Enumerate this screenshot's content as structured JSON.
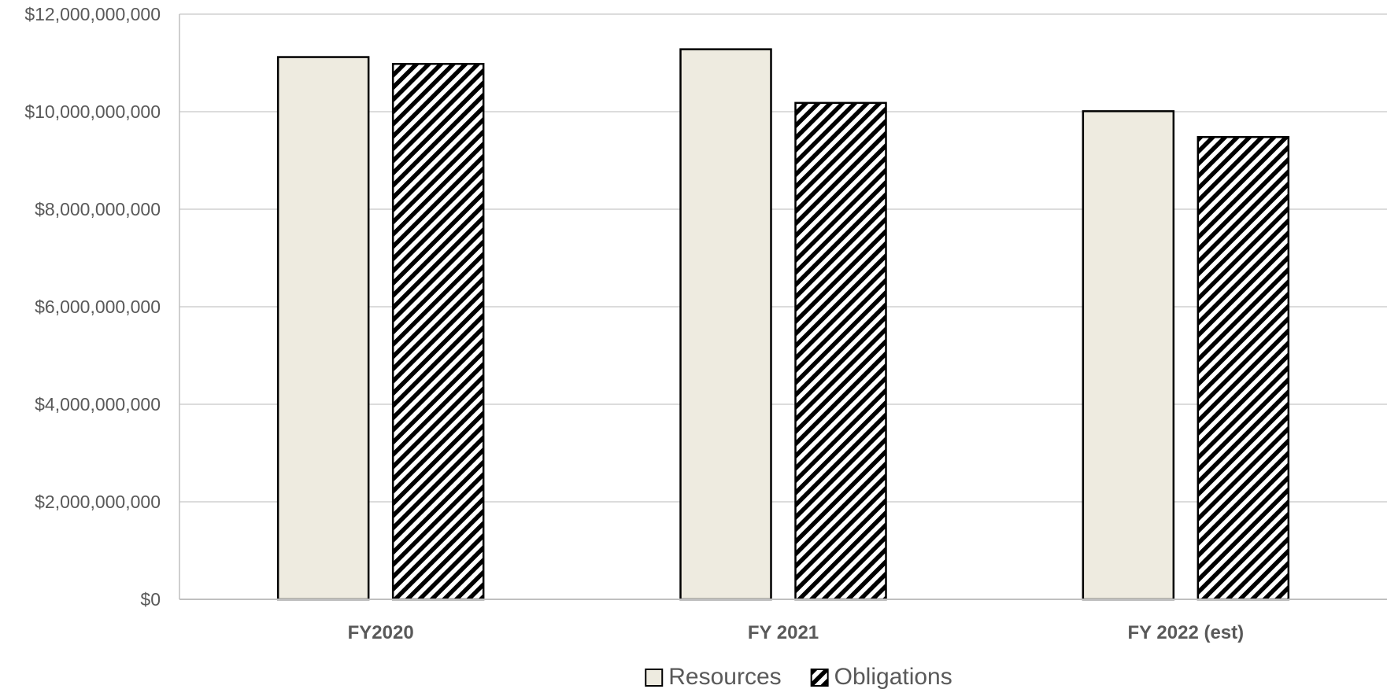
{
  "chart_data": {
    "type": "bar",
    "categories": [
      "FY2020",
      "FY 2021",
      "FY 2022 (est)"
    ],
    "series": [
      {
        "name": "Resources",
        "values": [
          11120000000,
          11280000000,
          10010000000
        ],
        "color": "#eeebe0",
        "pattern": "solid"
      },
      {
        "name": "Obligations",
        "values": [
          10980000000,
          10180000000,
          9480000000
        ],
        "color": "#000000",
        "pattern": "diagonal-hatch"
      }
    ],
    "title": "",
    "xlabel": "",
    "ylabel": "",
    "ylim": [
      0,
      12000000000
    ],
    "yticks": [
      0,
      2000000000,
      4000000000,
      6000000000,
      8000000000,
      10000000000,
      12000000000
    ],
    "ytick_labels": [
      "$0",
      "$2,000,000,000",
      "$4,000,000,000",
      "$6,000,000,000",
      "$8,000,000,000",
      "$10,000,000,000",
      "$12,000,000,000"
    ],
    "grid": true,
    "legend": {
      "position": "bottom",
      "entries": [
        "Resources",
        "Obligations"
      ]
    }
  }
}
